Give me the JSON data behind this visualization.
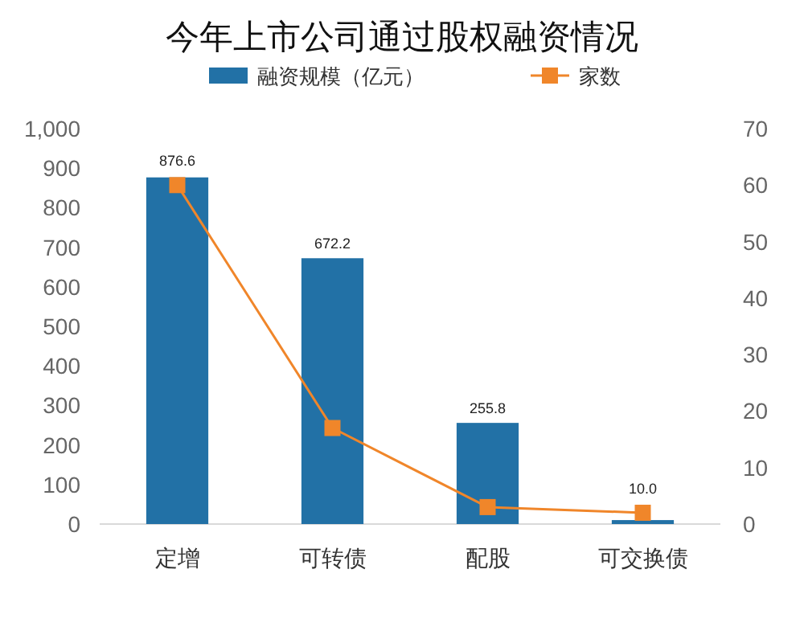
{
  "chart_data": {
    "type": "bar",
    "title": "今年上市公司通过股权融资情况",
    "categories": [
      "定增",
      "可转债",
      "配股",
      "可交换债"
    ],
    "series": [
      {
        "name": "融资规模（亿元）",
        "color": "#2271a6",
        "values": [
          876.6,
          672.2,
          255.8,
          10.0
        ],
        "value_labels": [
          "876.6",
          "672.2",
          "255.8",
          "10.0"
        ]
      },
      {
        "name": "家数",
        "type": "line",
        "axis": "y2",
        "color": "#f0862a",
        "marker": "square",
        "values": [
          60,
          17,
          3,
          2
        ]
      }
    ],
    "ylim": [
      0,
      1000
    ],
    "yticks": [
      0,
      100,
      200,
      300,
      400,
      500,
      600,
      700,
      800,
      900,
      {
        "value": 1000,
        "label": "1,000"
      }
    ],
    "y2lim": [
      0,
      70
    ],
    "y2ticks": [
      0,
      10,
      20,
      30,
      40,
      50,
      60,
      70
    ],
    "legend": "top"
  }
}
